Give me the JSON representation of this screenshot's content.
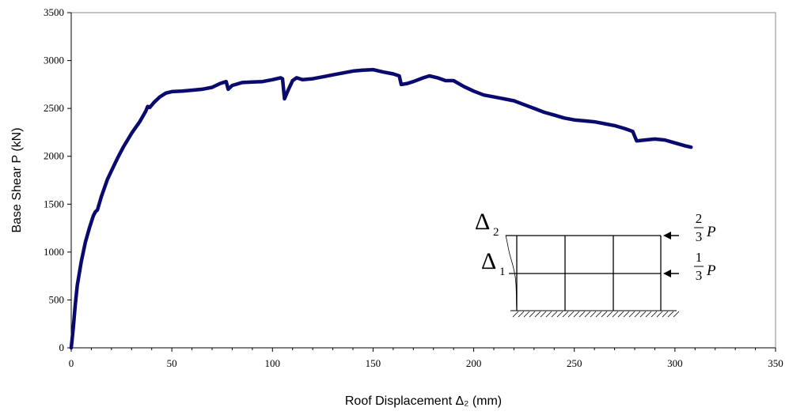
{
  "chart_data": {
    "type": "line",
    "title": "",
    "xlabel": "Roof Displacement Δ₂ (mm)",
    "ylabel": "Base Shear P (kN)",
    "xlim": [
      0,
      350
    ],
    "ylim": [
      0,
      3500
    ],
    "xticks": [
      0,
      50,
      100,
      150,
      200,
      250,
      300,
      350
    ],
    "yticks": [
      0,
      500,
      1000,
      1500,
      2000,
      2500,
      3000,
      3500
    ],
    "grid": false,
    "legend": "none",
    "series": [
      {
        "color": "#0a0a6e",
        "points": [
          [
            0,
            0
          ],
          [
            1,
            200
          ],
          [
            2,
            450
          ],
          [
            3,
            650
          ],
          [
            5,
            900
          ],
          [
            7,
            1100
          ],
          [
            9,
            1250
          ],
          [
            11,
            1380
          ],
          [
            12,
            1420
          ],
          [
            13,
            1440
          ],
          [
            15,
            1580
          ],
          [
            17,
            1700
          ],
          [
            18,
            1760
          ],
          [
            20,
            1850
          ],
          [
            23,
            1980
          ],
          [
            26,
            2100
          ],
          [
            30,
            2240
          ],
          [
            34,
            2360
          ],
          [
            37,
            2470
          ],
          [
            38,
            2520
          ],
          [
            39,
            2510
          ],
          [
            41,
            2560
          ],
          [
            44,
            2620
          ],
          [
            47,
            2660
          ],
          [
            50,
            2675
          ],
          [
            55,
            2680
          ],
          [
            60,
            2690
          ],
          [
            65,
            2700
          ],
          [
            70,
            2720
          ],
          [
            74,
            2760
          ],
          [
            77,
            2780
          ],
          [
            78,
            2700
          ],
          [
            80,
            2740
          ],
          [
            85,
            2770
          ],
          [
            90,
            2775
          ],
          [
            95,
            2780
          ],
          [
            100,
            2800
          ],
          [
            104,
            2820
          ],
          [
            105,
            2810
          ],
          [
            106,
            2600
          ],
          [
            108,
            2700
          ],
          [
            110,
            2790
          ],
          [
            112,
            2820
          ],
          [
            115,
            2800
          ],
          [
            120,
            2810
          ],
          [
            125,
            2830
          ],
          [
            130,
            2850
          ],
          [
            135,
            2870
          ],
          [
            140,
            2890
          ],
          [
            145,
            2900
          ],
          [
            150,
            2905
          ],
          [
            155,
            2880
          ],
          [
            160,
            2860
          ],
          [
            163,
            2840
          ],
          [
            164,
            2750
          ],
          [
            167,
            2760
          ],
          [
            170,
            2780
          ],
          [
            175,
            2820
          ],
          [
            178,
            2840
          ],
          [
            182,
            2820
          ],
          [
            186,
            2790
          ],
          [
            190,
            2790
          ],
          [
            195,
            2730
          ],
          [
            200,
            2680
          ],
          [
            205,
            2640
          ],
          [
            210,
            2620
          ],
          [
            215,
            2600
          ],
          [
            220,
            2580
          ],
          [
            225,
            2540
          ],
          [
            230,
            2500
          ],
          [
            235,
            2460
          ],
          [
            240,
            2430
          ],
          [
            245,
            2400
          ],
          [
            250,
            2380
          ],
          [
            255,
            2370
          ],
          [
            260,
            2360
          ],
          [
            265,
            2340
          ],
          [
            270,
            2320
          ],
          [
            275,
            2290
          ],
          [
            279,
            2260
          ],
          [
            281,
            2160
          ],
          [
            285,
            2170
          ],
          [
            290,
            2180
          ],
          [
            295,
            2170
          ],
          [
            300,
            2140
          ],
          [
            305,
            2110
          ],
          [
            308,
            2095
          ]
        ]
      }
    ],
    "inset": {
      "delta_top_main": "Δ",
      "delta_top_sub": "2",
      "delta_mid_main": "Δ",
      "delta_mid_sub": "1",
      "load_top_num": "2",
      "load_top_den": "3",
      "load_top_var": "P",
      "load_mid_num": "1",
      "load_mid_den": "3",
      "load_mid_var": "P"
    }
  }
}
